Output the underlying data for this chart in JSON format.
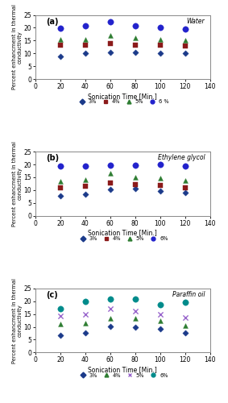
{
  "x": [
    20,
    40,
    60,
    80,
    100,
    120
  ],
  "panel_a": {
    "title": "Water",
    "label": "(a)",
    "series": {
      "3%": [
        8.7,
        10.0,
        10.5,
        10.5,
        10.2,
        10.0
      ],
      "4%": [
        13.2,
        13.1,
        13.8,
        13.3,
        13.1,
        13.0
      ],
      "5%": [
        15.5,
        15.5,
        17.0,
        16.0,
        15.5,
        15.0
      ],
      "6%": [
        19.9,
        20.8,
        22.2,
        20.8,
        20.1,
        19.5
      ]
    }
  },
  "panel_b": {
    "title": "Ethylene glycol",
    "label": "(b)",
    "series": {
      "3%": [
        7.8,
        8.5,
        10.2,
        10.5,
        9.8,
        9.0
      ],
      "4%": [
        11.0,
        11.5,
        12.8,
        12.2,
        11.8,
        11.0
      ],
      "5%": [
        13.5,
        14.2,
        16.5,
        15.0,
        14.8,
        13.8
      ],
      "6%": [
        19.3,
        19.3,
        19.7,
        19.8,
        20.0,
        19.3
      ]
    }
  },
  "panel_c": {
    "title": "Paraffin oil",
    "label": "(c)",
    "series": {
      "3%": [
        6.8,
        7.5,
        10.3,
        9.8,
        9.2,
        7.5
      ],
      "4%": [
        11.0,
        11.5,
        13.3,
        13.3,
        12.5,
        10.5
      ],
      "5%": [
        14.2,
        15.0,
        17.0,
        16.2,
        15.0,
        13.5
      ],
      "6%": [
        17.0,
        20.0,
        20.8,
        20.8,
        18.8,
        19.5
      ]
    }
  },
  "panels_ab": {
    "colors": {
      "3%": "#1b3a8a",
      "4%": "#8b1a1a",
      "5%": "#2e7d32",
      "6%": "#2222cc"
    },
    "markers": {
      "3%": "D",
      "4%": "s",
      "5%": "^",
      "6%": "o"
    },
    "msizes": {
      "3%": 14,
      "4%": 16,
      "5%": 18,
      "6%": 28
    },
    "legend_labels": [
      "3%",
      "4%",
      "5%",
      "6 %"
    ],
    "legend_labels_b": [
      "3%",
      "4%",
      "5%",
      "6%"
    ]
  },
  "panel_c_style": {
    "colors": {
      "3%": "#1b3a8a",
      "4%": "#2e7d32",
      "5%": "#9966cc",
      "6%": "#008b8b"
    },
    "markers": {
      "3%": "D",
      "4%": "^",
      "5%": "x",
      "6%": "o"
    },
    "msizes": {
      "3%": 14,
      "4%": 18,
      "5%": 20,
      "6%": 28
    },
    "legend_labels": [
      "3%",
      "4%",
      "5%",
      "6%"
    ]
  },
  "ylim": [
    0,
    25
  ],
  "xlim": [
    0,
    140
  ],
  "yticks": [
    0,
    5,
    10,
    15,
    20,
    25
  ],
  "xticks": [
    0,
    20,
    40,
    60,
    80,
    100,
    120,
    140
  ],
  "xlabel": "Sonication Time [Min.]",
  "ylabel": "Percent enhancment in thermal\nconductivity"
}
